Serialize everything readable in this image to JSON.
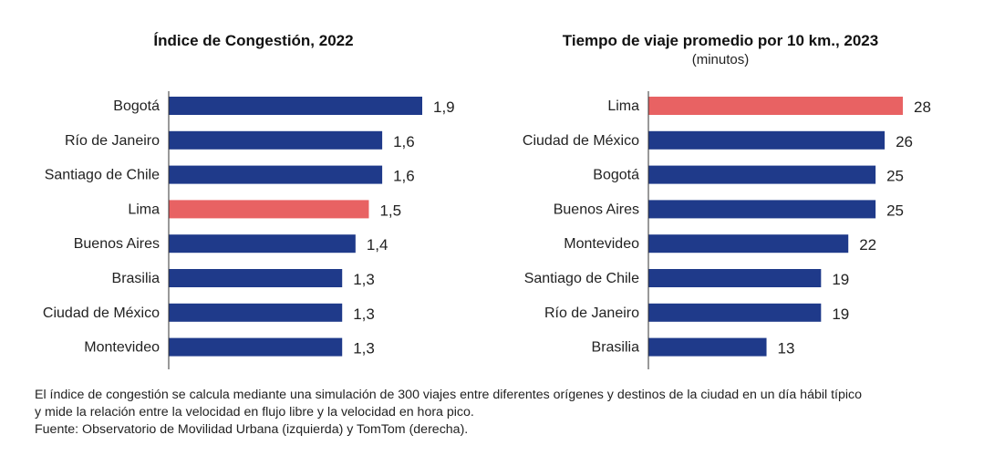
{
  "chart_data": [
    {
      "type": "bar",
      "orientation": "horizontal",
      "title": "Índice de Congestión, 2022",
      "subtitle": "",
      "categories": [
        "Bogotá",
        "Río de Janeiro",
        "Santiago de Chile",
        "Lima",
        "Buenos Aires",
        "Brasilia",
        "Ciudad de México",
        "Montevideo"
      ],
      "values": [
        1.9,
        1.6,
        1.6,
        1.5,
        1.4,
        1.3,
        1.3,
        1.3
      ],
      "value_labels": [
        "1,9",
        "1,6",
        "1,6",
        "1,5",
        "1,4",
        "1,3",
        "1,3",
        "1,3"
      ],
      "highlight": "Lima",
      "xlim": [
        0,
        1.9
      ]
    },
    {
      "type": "bar",
      "orientation": "horizontal",
      "title": "Tiempo de viaje promedio por 10 km., 2023",
      "subtitle": "(minutos)",
      "categories": [
        "Lima",
        "Ciudad de México",
        "Bogotá",
        "Buenos Aires",
        "Montevideo",
        "Santiago de Chile",
        "Río de Janeiro",
        "Brasilia"
      ],
      "values": [
        28,
        26,
        25,
        25,
        22,
        19,
        19,
        13
      ],
      "value_labels": [
        "28",
        "26",
        "25",
        "25",
        "22",
        "19",
        "19",
        "13"
      ],
      "highlight": "Lima",
      "xlim": [
        0,
        28
      ]
    }
  ],
  "colors": {
    "bar": "#1f3a8a",
    "highlight": "#e86263",
    "axis": "#333333"
  },
  "footnote": {
    "line1": "El índice de congestión se calcula mediante una simulación de 300 viajes entre diferentes orígenes y destinos de la ciudad en un día hábil típico",
    "line2": "y mide la relación entre la velocidad en flujo libre y la velocidad en hora pico.",
    "source": "Fuente: Observatorio de Movilidad Urbana (izquierda) y TomTom (derecha)."
  }
}
